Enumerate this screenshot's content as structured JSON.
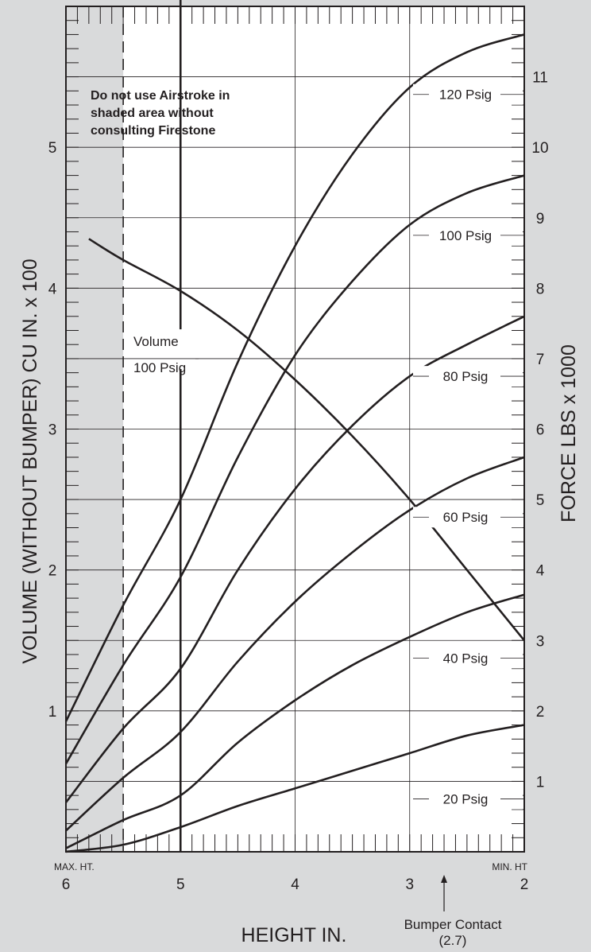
{
  "chart_data": {
    "type": "line",
    "xlabel": "HEIGHT IN.",
    "ylabel_left": "VOLUME (WITHOUT BUMPER) CU IN. x 100",
    "ylabel_right": "FORCE LBS x 1000",
    "xlim": [
      6,
      2
    ],
    "ylim_left": [
      0,
      6
    ],
    "ylim_right": [
      0,
      12
    ],
    "x_ticks": [
      "6",
      "5",
      "4",
      "3",
      "2"
    ],
    "y_left_ticks": [
      "1",
      "2",
      "3",
      "4",
      "5"
    ],
    "y_right_ticks": [
      "1",
      "2",
      "3",
      "4",
      "5",
      "6",
      "7",
      "8",
      "9",
      "10",
      "11"
    ],
    "grid": true,
    "max_height_label": "MAX. HT.",
    "min_height_label": "MIN. HT",
    "bumper_contact": {
      "x": 2.7,
      "label": "Bumper Contact",
      "value_label": "(2.7)"
    },
    "design_height": 5.0,
    "shaded_region": {
      "x_from": 6.0,
      "x_to": 5.5
    },
    "warning": [
      "Do not use Airstroke in",
      "shaded area without",
      "consulting Firestone"
    ],
    "force_series": [
      {
        "name": "120 Psig",
        "x": [
          6.0,
          5.5,
          5.0,
          4.5,
          4.0,
          3.5,
          3.0,
          2.5,
          2.0
        ],
        "y": [
          1.85,
          3.5,
          5.0,
          6.95,
          8.6,
          9.9,
          10.85,
          11.35,
          11.6
        ]
      },
      {
        "name": "100 Psig",
        "x": [
          6.0,
          5.5,
          5.0,
          4.5,
          4.0,
          3.5,
          3.0,
          2.5,
          2.0
        ],
        "y": [
          1.25,
          2.65,
          3.9,
          5.6,
          7.05,
          8.1,
          8.9,
          9.35,
          9.6
        ]
      },
      {
        "name": "80 Psig",
        "x": [
          6.0,
          5.5,
          5.0,
          4.5,
          4.0,
          3.5,
          3.0,
          2.5,
          2.0
        ],
        "y": [
          0.7,
          1.75,
          2.6,
          4.0,
          5.15,
          6.05,
          6.75,
          7.2,
          7.6
        ]
      },
      {
        "name": "60 Psig",
        "x": [
          6.0,
          5.5,
          5.0,
          4.5,
          4.0,
          3.5,
          3.0,
          2.5,
          2.0
        ],
        "y": [
          0.3,
          1.05,
          1.7,
          2.7,
          3.55,
          4.25,
          4.85,
          5.3,
          5.6
        ]
      },
      {
        "name": "40 Psig",
        "x": [
          6.0,
          5.5,
          5.0,
          4.5,
          4.0,
          3.5,
          3.0,
          2.5,
          2.0
        ],
        "y": [
          0.05,
          0.45,
          0.8,
          1.55,
          2.15,
          2.65,
          3.05,
          3.4,
          3.65
        ]
      },
      {
        "name": "20 Psig",
        "x": [
          6.0,
          5.5,
          5.0,
          4.5,
          4.0,
          3.5,
          3.0,
          2.5,
          2.0
        ],
        "y": [
          0.0,
          0.1,
          0.35,
          0.65,
          0.9,
          1.15,
          1.4,
          1.65,
          1.8
        ]
      }
    ],
    "volume_series": {
      "name": "Volume",
      "label_lines": [
        "Volume",
        "100 Psig"
      ],
      "x": [
        5.8,
        5.5,
        5.0,
        4.5,
        4.0,
        3.5,
        3.0,
        2.5,
        2.0
      ],
      "y": [
        4.35,
        4.2,
        3.98,
        3.7,
        3.35,
        2.95,
        2.5,
        2.0,
        1.5
      ]
    }
  }
}
